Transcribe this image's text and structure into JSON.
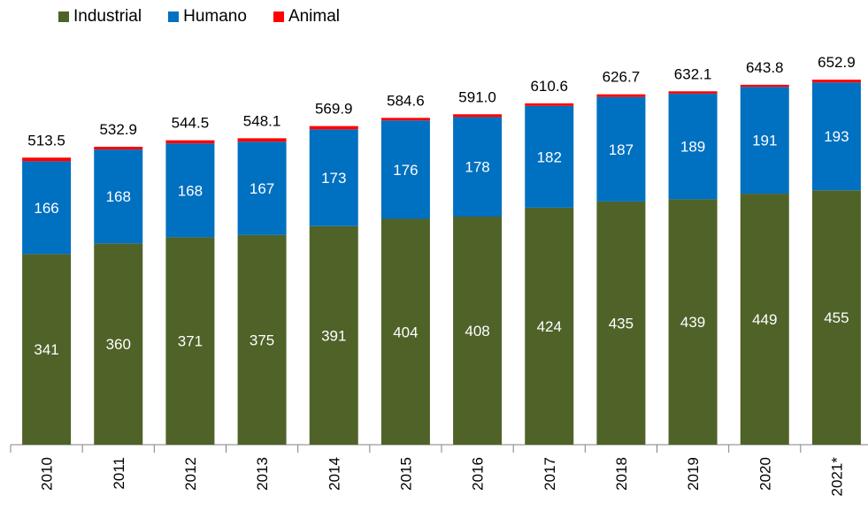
{
  "chart_data": {
    "type": "bar",
    "stacked": true,
    "categories": [
      "2010",
      "2011",
      "2012",
      "2013",
      "2014",
      "2015",
      "2016",
      "2017",
      "2018",
      "2019",
      "2020",
      "2021*"
    ],
    "series": [
      {
        "name": "Industrial",
        "color": "#4f6228",
        "values": [
          341,
          360,
          371,
          375,
          391,
          404,
          408,
          424,
          435,
          439,
          449,
          455
        ]
      },
      {
        "name": "Humano",
        "color": "#0070c0",
        "values": [
          166,
          168,
          168,
          167,
          173,
          176,
          178,
          182,
          187,
          189,
          191,
          193
        ]
      },
      {
        "name": "Animal",
        "color": "#ff0000",
        "values": [
          6.5,
          4.9,
          5.5,
          6.1,
          5.9,
          4.6,
          5.0,
          4.6,
          4.7,
          4.1,
          3.8,
          4.9
        ]
      }
    ],
    "totals": [
      "513.5",
      "532.9",
      "544.5",
      "548.1",
      "569.9",
      "584.6",
      "591.0",
      "610.6",
      "626.7",
      "632.1",
      "643.8",
      "652.9"
    ],
    "ylim": [
      0,
      700
    ],
    "legend_position": "top-left",
    "grid": false
  }
}
